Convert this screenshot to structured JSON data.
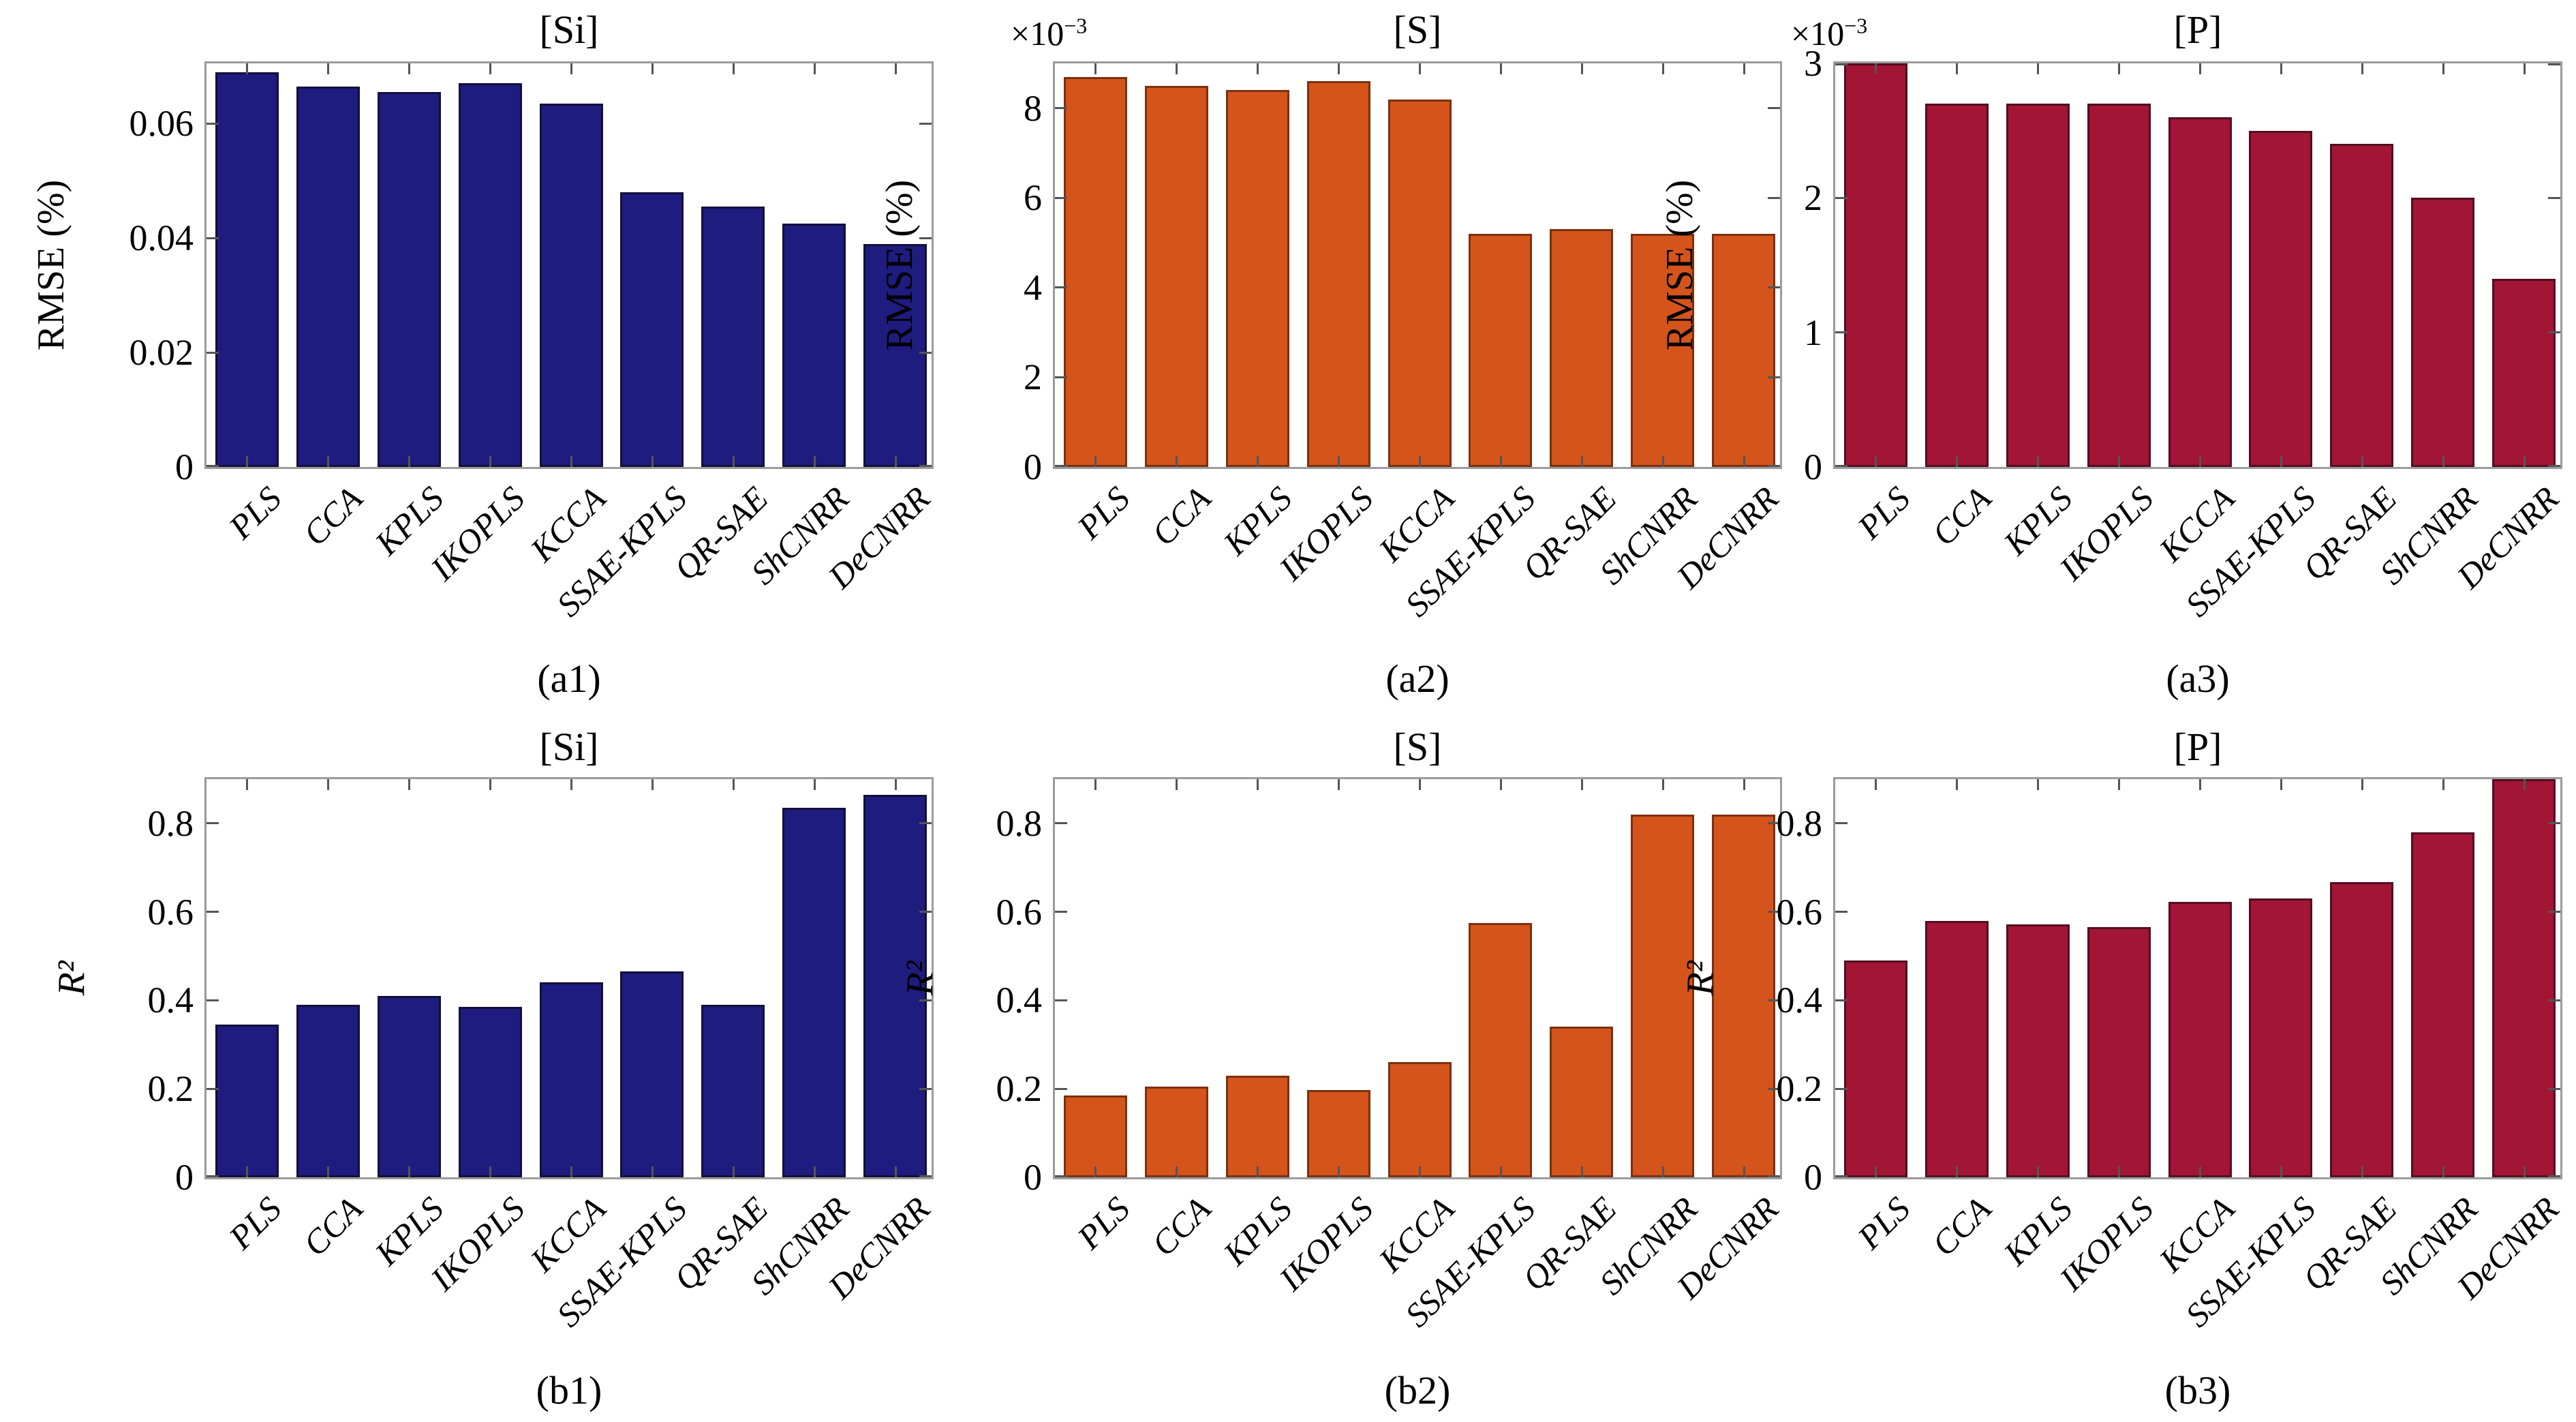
{
  "chart_data": [
    {
      "type": "bar",
      "panel_label": "(a1)",
      "title": "[Si]",
      "xlabel": "",
      "ylabel": "RMSE (%)",
      "ylabel_italic": false,
      "y_offset": null,
      "categories": [
        "PLS",
        "CCA",
        "KPLS",
        "IKOPLS",
        "KCCA",
        "SSAE-KPLS",
        "QR-SAE",
        "ShCNRR",
        "DeCNRR"
      ],
      "values": [
        0.069,
        0.0665,
        0.0655,
        0.067,
        0.0635,
        0.048,
        0.0455,
        0.0425,
        0.039
      ],
      "ylim": [
        0,
        0.0705
      ],
      "ytick_values": [
        0,
        0.02,
        0.04,
        0.06
      ],
      "ytick_labels": [
        "0",
        "0.02",
        "0.04",
        "0.06"
      ],
      "grid": false,
      "legend": null,
      "bar_color": "#1e1c7e",
      "bar_edge_color": "#12103c"
    },
    {
      "type": "bar",
      "panel_label": "(a2)",
      "title": "[S]",
      "xlabel": "",
      "ylabel": "RMSE (%)",
      "ylabel_italic": false,
      "y_offset": {
        "base": "×10",
        "exp": "−3"
      },
      "categories": [
        "PLS",
        "CCA",
        "KPLS",
        "IKOPLS",
        "KCCA",
        "SSAE-KPLS",
        "QR-SAE",
        "ShCNRR",
        "DeCNRR"
      ],
      "values": [
        8.7,
        8.5,
        8.4,
        8.6,
        8.2,
        5.2,
        5.3,
        5.2,
        5.2
      ],
      "ylim": [
        0,
        9
      ],
      "ytick_values": [
        0,
        2,
        4,
        6,
        8
      ],
      "ytick_labels": [
        "0",
        "2",
        "4",
        "6",
        "8"
      ],
      "grid": false,
      "legend": null,
      "bar_color": "#d4541c",
      "bar_edge_color": "#7a3110"
    },
    {
      "type": "bar",
      "panel_label": "(a3)",
      "title": "[P]",
      "xlabel": "",
      "ylabel": "RMSE (%)",
      "ylabel_italic": false,
      "y_offset": {
        "base": "×10",
        "exp": "−3"
      },
      "categories": [
        "PLS",
        "CCA",
        "KPLS",
        "IKOPLS",
        "KCCA",
        "SSAE-KPLS",
        "QR-SAE",
        "ShCNRR",
        "DeCNRR"
      ],
      "values": [
        3.0,
        2.7,
        2.7,
        2.7,
        2.6,
        2.5,
        2.4,
        2.0,
        1.4
      ],
      "ylim": [
        0,
        3
      ],
      "ytick_values": [
        0,
        1,
        2,
        3
      ],
      "ytick_labels": [
        "0",
        "1",
        "2",
        "3"
      ],
      "grid": false,
      "legend": null,
      "bar_color": "#a21534",
      "bar_edge_color": "#530e20"
    },
    {
      "type": "bar",
      "panel_label": "(b1)",
      "title": "[Si]",
      "xlabel": "",
      "ylabel": "R²",
      "ylabel_italic": true,
      "y_offset": null,
      "categories": [
        "PLS",
        "CCA",
        "KPLS",
        "IKOPLS",
        "KCCA",
        "SSAE-KPLS",
        "QR-SAE",
        "ShCNRR",
        "DeCNRR"
      ],
      "values": [
        0.345,
        0.39,
        0.41,
        0.385,
        0.44,
        0.465,
        0.39,
        0.835,
        0.865
      ],
      "ylim": [
        0,
        0.9
      ],
      "ytick_values": [
        0,
        0.2,
        0.4,
        0.6,
        0.8
      ],
      "ytick_labels": [
        "0",
        "0.2",
        "0.4",
        "0.6",
        "0.8"
      ],
      "grid": false,
      "legend": null,
      "bar_color": "#1e1c7e",
      "bar_edge_color": "#12103c"
    },
    {
      "type": "bar",
      "panel_label": "(b2)",
      "title": "[S]",
      "xlabel": "",
      "ylabel": "R²",
      "ylabel_italic": true,
      "y_offset": null,
      "categories": [
        "PLS",
        "CCA",
        "KPLS",
        "IKOPLS",
        "KCCA",
        "SSAE-KPLS",
        "QR-SAE",
        "ShCNRR",
        "DeCNRR"
      ],
      "values": [
        0.185,
        0.205,
        0.23,
        0.197,
        0.26,
        0.575,
        0.34,
        0.82,
        0.82
      ],
      "ylim": [
        0,
        0.9
      ],
      "ytick_values": [
        0,
        0.2,
        0.4,
        0.6,
        0.8
      ],
      "ytick_labels": [
        "0",
        "0.2",
        "0.4",
        "0.6",
        "0.8"
      ],
      "grid": false,
      "legend": null,
      "bar_color": "#d4541c",
      "bar_edge_color": "#7a3110"
    },
    {
      "type": "bar",
      "panel_label": "(b3)",
      "title": "[P]",
      "xlabel": "",
      "ylabel": "R²",
      "ylabel_italic": true,
      "y_offset": null,
      "categories": [
        "PLS",
        "CCA",
        "KPLS",
        "IKOPLS",
        "KCCA",
        "SSAE-KPLS",
        "QR-SAE",
        "ShCNRR",
        "DeCNRR"
      ],
      "values": [
        0.49,
        0.58,
        0.572,
        0.566,
        0.623,
        0.63,
        0.667,
        0.78,
        0.9
      ],
      "ylim": [
        0,
        0.9
      ],
      "ytick_values": [
        0,
        0.2,
        0.4,
        0.6,
        0.8
      ],
      "ytick_labels": [
        "0",
        "0.2",
        "0.4",
        "0.6",
        "0.8"
      ],
      "grid": false,
      "legend": null,
      "bar_color": "#a21534",
      "bar_edge_color": "#530e20"
    }
  ]
}
